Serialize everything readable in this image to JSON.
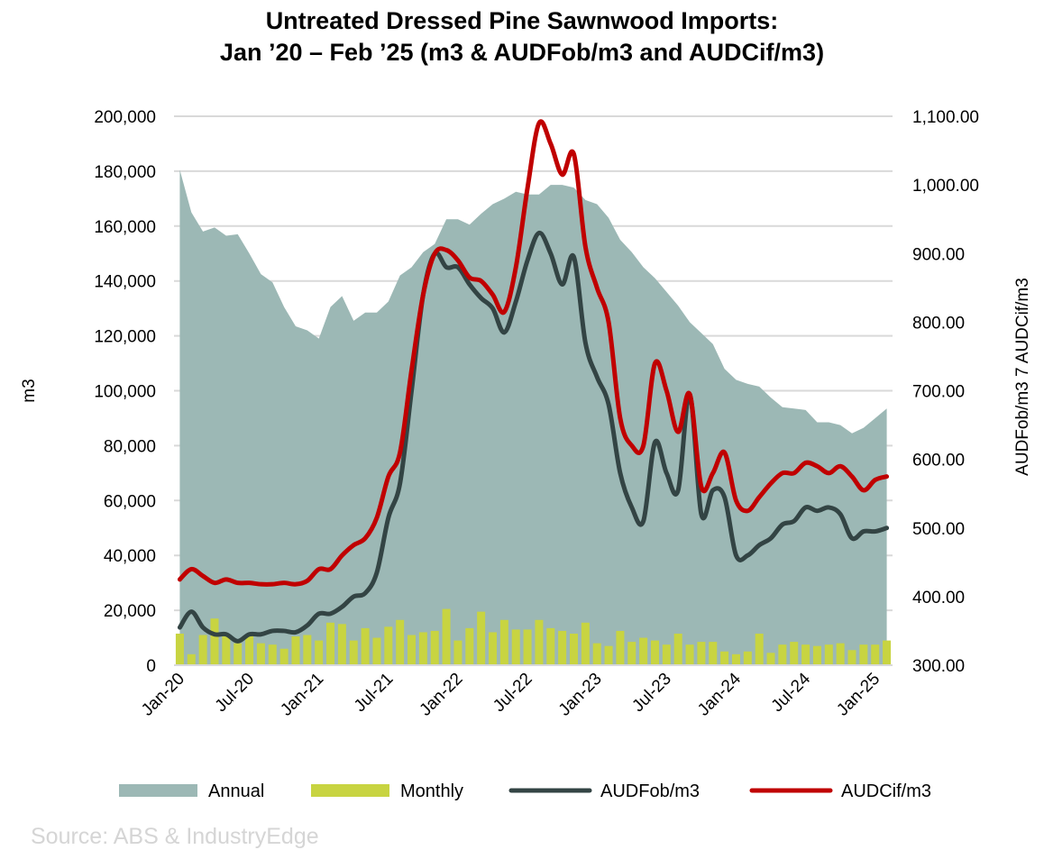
{
  "chart_data": {
    "type": "line",
    "title": "Untreated Dressed Pine Sawnwood Imports:",
    "subtitle": "Jan ’20 – Feb ’25 (m3 & AUDFob/m3 and AUDCif/m3)",
    "ylabel": "m3",
    "y2label": "AUDFob/m3 7 AUDCif/m3",
    "ylim": [
      0,
      200000
    ],
    "y2lim": [
      300,
      1100
    ],
    "yticks": [
      "0",
      "20,000",
      "40,000",
      "60,000",
      "80,000",
      "100,000",
      "120,000",
      "140,000",
      "160,000",
      "180,000",
      "200,000"
    ],
    "y2ticks": [
      "300.00",
      "400.00",
      "500.00",
      "600.00",
      "700.00",
      "800.00",
      "900.00",
      "1,000.00",
      "1,100.00"
    ],
    "xticks": [
      "Jan-20",
      "Jul-20",
      "Jan-21",
      "Jul-21",
      "Jan-22",
      "Jul-22",
      "Jan-23",
      "Jul-23",
      "Jan-24",
      "Jul-24",
      "Jan-25"
    ],
    "grid": "horizontal",
    "legend_position": "bottom",
    "colors": {
      "annual": "#9cb8b5",
      "monthly": "#c8d441",
      "fob": "#334444",
      "cif": "#c00000",
      "grid": "#d9d9d9",
      "source": "#d5d5d5"
    },
    "x": [
      "2020-01",
      "2020-02",
      "2020-03",
      "2020-04",
      "2020-05",
      "2020-06",
      "2020-07",
      "2020-08",
      "2020-09",
      "2020-10",
      "2020-11",
      "2020-12",
      "2021-01",
      "2021-02",
      "2021-03",
      "2021-04",
      "2021-05",
      "2021-06",
      "2021-07",
      "2021-08",
      "2021-09",
      "2021-10",
      "2021-11",
      "2021-12",
      "2022-01",
      "2022-02",
      "2022-03",
      "2022-04",
      "2022-05",
      "2022-06",
      "2022-07",
      "2022-08",
      "2022-09",
      "2022-10",
      "2022-11",
      "2022-12",
      "2023-01",
      "2023-02",
      "2023-03",
      "2023-04",
      "2023-05",
      "2023-06",
      "2023-07",
      "2023-08",
      "2023-09",
      "2023-10",
      "2023-11",
      "2023-12",
      "2024-01",
      "2024-02",
      "2024-03",
      "2024-04",
      "2024-05",
      "2024-06",
      "2024-07",
      "2024-08",
      "2024-09",
      "2024-10",
      "2024-11",
      "2024-12",
      "2025-01",
      "2025-02"
    ],
    "series": [
      {
        "name": "Annual",
        "kind": "area",
        "axis": "left",
        "values": [
          180500,
          165000,
          158000,
          159500,
          156500,
          157000,
          150000,
          142500,
          139500,
          130500,
          123500,
          122000,
          119000,
          130500,
          134500,
          125500,
          128500,
          128500,
          132500,
          142000,
          145000,
          150500,
          153500,
          162500,
          162500,
          160500,
          164500,
          168000,
          170000,
          172500,
          171500,
          171500,
          175000,
          175000,
          174000,
          169500,
          168000,
          163000,
          155000,
          150500,
          145000,
          141000,
          136000,
          131000,
          125000,
          121000,
          117000,
          108000,
          104000,
          102500,
          101500,
          97500,
          94000,
          93500,
          93000,
          88500,
          88500,
          87500,
          84500,
          86500,
          90000,
          93500
        ]
      },
      {
        "name": "Monthly",
        "kind": "bar",
        "axis": "left",
        "values": [
          11500,
          4000,
          11000,
          17000,
          10500,
          8000,
          11000,
          8000,
          7500,
          6000,
          10500,
          11000,
          9000,
          15500,
          15000,
          9000,
          13500,
          10000,
          14000,
          16500,
          11000,
          12000,
          12500,
          20500,
          9000,
          13500,
          19500,
          12000,
          16500,
          13000,
          13000,
          16500,
          13500,
          12500,
          11500,
          15500,
          8000,
          7000,
          12500,
          8500,
          10000,
          9000,
          7500,
          11500,
          7500,
          8500,
          8500,
          5000,
          4000,
          5000,
          11500,
          4500,
          7500,
          8500,
          7500,
          7000,
          7500,
          8000,
          5500,
          7500,
          7500,
          9000
        ]
      },
      {
        "name": "AUDFob/m3",
        "kind": "line",
        "axis": "right",
        "values": [
          355,
          378,
          355,
          345,
          345,
          335,
          345,
          345,
          350,
          350,
          348,
          358,
          375,
          375,
          385,
          400,
          405,
          435,
          515,
          565,
          700,
          840,
          900,
          880,
          880,
          855,
          835,
          820,
          785,
          830,
          890,
          930,
          900,
          855,
          895,
          770,
          720,
          680,
          580,
          530,
          510,
          625,
          580,
          555,
          695,
          520,
          555,
          545,
          460,
          460,
          475,
          485,
          505,
          510,
          530,
          525,
          530,
          520,
          485,
          495,
          495,
          500
        ]
      },
      {
        "name": "AUDCif/m3",
        "kind": "line",
        "axis": "right",
        "values": [
          425,
          440,
          430,
          420,
          425,
          420,
          420,
          418,
          418,
          420,
          418,
          423,
          440,
          440,
          460,
          475,
          485,
          515,
          575,
          610,
          730,
          840,
          900,
          905,
          890,
          865,
          860,
          840,
          815,
          880,
          995,
          1090,
          1060,
          1015,
          1045,
          910,
          850,
          800,
          660,
          620,
          620,
          740,
          700,
          640,
          695,
          560,
          580,
          610,
          540,
          525,
          545,
          565,
          580,
          580,
          595,
          590,
          580,
          590,
          575,
          555,
          570,
          575
        ]
      }
    ]
  },
  "source_note": "Source: ABS & IndustryEdge"
}
